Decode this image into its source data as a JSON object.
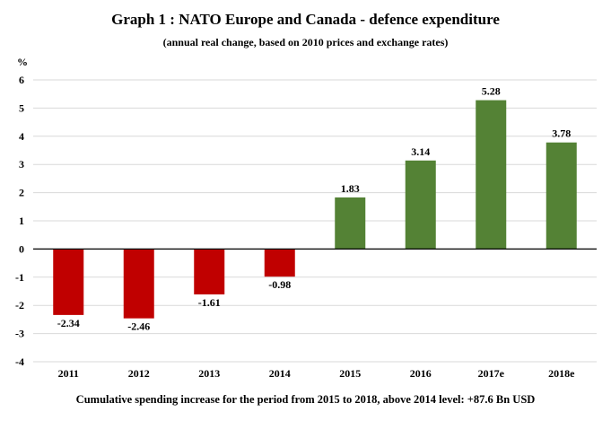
{
  "chart_data": {
    "type": "bar",
    "title": "Graph 1 : NATO Europe and Canada - defence expenditure",
    "subtitle": "(annual real change, based on 2010 prices and exchange rates)",
    "ylabel": "%",
    "xlabel": "",
    "categories": [
      "2011",
      "2012",
      "2013",
      "2014",
      "2015",
      "2016",
      "2017e",
      "2018e"
    ],
    "values": [
      -2.34,
      -2.46,
      -1.61,
      -0.98,
      1.83,
      3.14,
      5.28,
      3.78
    ],
    "data_labels": [
      "-2.34",
      "-2.46",
      "-1.61",
      "-0.98",
      "1.83",
      "3.14",
      "5.28",
      "3.78"
    ],
    "ylim": [
      -4,
      6
    ],
    "yticks": [
      6,
      5,
      4,
      3,
      2,
      1,
      0,
      -1,
      -2,
      -3,
      -4
    ],
    "grid": true,
    "colors": {
      "negative": "#c00000",
      "positive": "#548235",
      "grid": "#d9d9d9",
      "axis": "#000000"
    },
    "footnote": "Cumulative spending increase for the period from 2015 to 2018, above 2014 level: +87.6 Bn USD"
  }
}
